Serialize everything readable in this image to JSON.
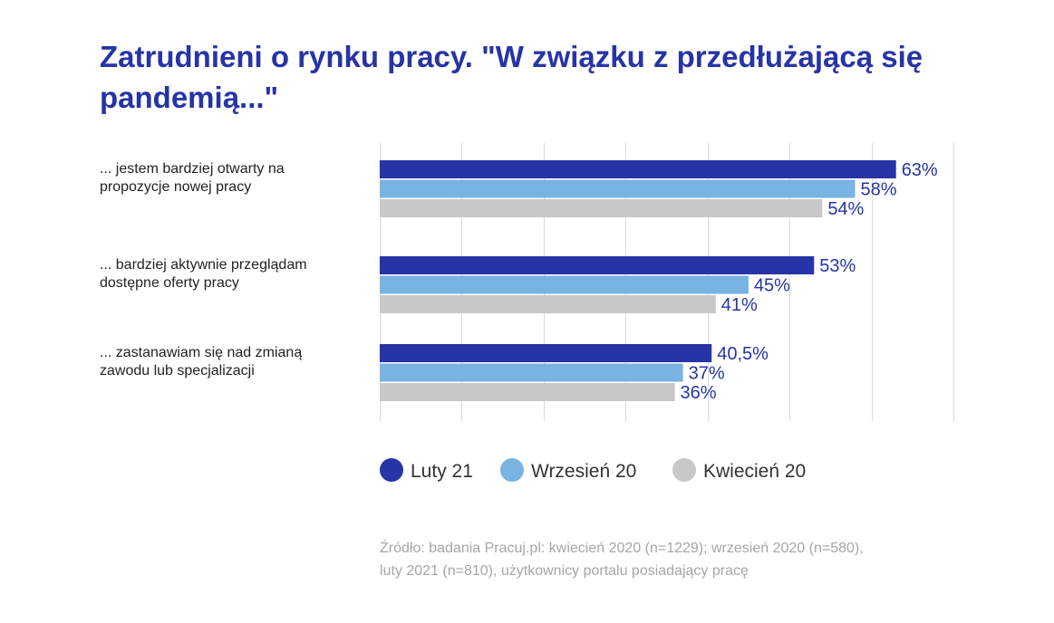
{
  "title_lines": [
    "Zatrudnieni o rynku pracy. \"W związku z przedłużającą się",
    "pandemią...\""
  ],
  "source_lines": [
    "Źródło: badania Pracuj.pl: kwiecień 2020 (n=1229); wrzesień 2020 (n=580),",
    "luty 2021 (n=810), użytkownicy portalu posiadający pracę"
  ],
  "chart_data": {
    "type": "bar",
    "orientation": "horizontal",
    "categories": [
      [
        "... jestem bardziej otwarty na",
        "propozycje nowej pracy"
      ],
      [
        "... bardziej aktywnie przeglądam",
        "dostępne oferty pracy"
      ],
      [
        "... zastanawiam się nad zmianą",
        "zawodu lub specjalizacji"
      ]
    ],
    "series": [
      {
        "name": "Luty 21",
        "color": "#2734a5",
        "values": [
          63,
          53,
          40.5
        ],
        "labels": [
          "63%",
          "53%",
          "40,5%"
        ]
      },
      {
        "name": "Wrzesień 20",
        "color": "#78b3e2",
        "values": [
          58,
          45,
          37
        ],
        "labels": [
          "58%",
          "45%",
          "37%"
        ]
      },
      {
        "name": "Kwiecień 20",
        "color": "#c8c8c8",
        "values": [
          54,
          41,
          36
        ],
        "labels": [
          "54%",
          "41%",
          "36%"
        ]
      }
    ],
    "xlim": [
      0,
      70
    ],
    "grid": true,
    "legend_position": "bottom"
  }
}
